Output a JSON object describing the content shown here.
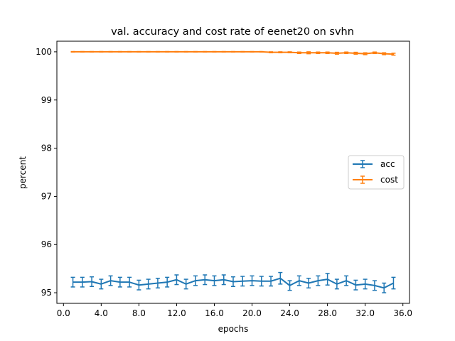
{
  "chart_data": {
    "type": "line",
    "title": "val. accuracy and cost rate of eenet20 on svhn",
    "xlabel": "epochs",
    "ylabel": "percent",
    "xlim": [
      -0.7,
      36.7
    ],
    "ylim": [
      94.78,
      100.22
    ],
    "xticks": [
      0,
      4,
      8,
      12,
      16,
      20,
      24,
      28,
      32,
      36
    ],
    "xtick_labels": [
      "0.0",
      "4.0",
      "8.0",
      "12.0",
      "16.0",
      "20.0",
      "24.0",
      "28.0",
      "32.0",
      "36.0"
    ],
    "yticks": [
      95,
      96,
      97,
      98,
      99,
      100
    ],
    "ytick_labels": [
      "95",
      "96",
      "97",
      "98",
      "99",
      "100"
    ],
    "grid": false,
    "legend_position": "center-right",
    "series": [
      {
        "name": "acc",
        "color": "#1f77b4",
        "x": [
          1,
          2,
          3,
          4,
          5,
          6,
          7,
          8,
          9,
          10,
          11,
          12,
          13,
          14,
          15,
          16,
          17,
          18,
          19,
          20,
          21,
          22,
          23,
          24,
          25,
          26,
          27,
          28,
          29,
          30,
          31,
          32,
          33,
          34,
          35
        ],
        "y": [
          95.22,
          95.22,
          95.23,
          95.18,
          95.25,
          95.22,
          95.22,
          95.16,
          95.18,
          95.2,
          95.22,
          95.27,
          95.18,
          95.25,
          95.27,
          95.25,
          95.27,
          95.23,
          95.24,
          95.25,
          95.24,
          95.24,
          95.3,
          95.15,
          95.25,
          95.2,
          95.25,
          95.28,
          95.18,
          95.25,
          95.16,
          95.18,
          95.15,
          95.1,
          95.2
        ],
        "err": [
          0.1,
          0.1,
          0.1,
          0.1,
          0.1,
          0.1,
          0.1,
          0.1,
          0.1,
          0.1,
          0.1,
          0.1,
          0.1,
          0.1,
          0.1,
          0.1,
          0.1,
          0.1,
          0.1,
          0.1,
          0.1,
          0.1,
          0.12,
          0.1,
          0.1,
          0.1,
          0.1,
          0.12,
          0.1,
          0.1,
          0.1,
          0.1,
          0.1,
          0.1,
          0.12
        ]
      },
      {
        "name": "cost",
        "color": "#ff7f0e",
        "x": [
          1,
          2,
          3,
          4,
          5,
          6,
          7,
          8,
          9,
          10,
          11,
          12,
          13,
          14,
          15,
          16,
          17,
          18,
          19,
          20,
          21,
          22,
          23,
          24,
          25,
          26,
          27,
          28,
          29,
          30,
          31,
          32,
          33,
          34,
          35
        ],
        "y": [
          100.0,
          100.0,
          100.0,
          100.0,
          100.0,
          100.0,
          100.0,
          100.0,
          100.0,
          100.0,
          100.0,
          100.0,
          100.0,
          100.0,
          100.0,
          100.0,
          100.0,
          100.0,
          100.0,
          100.0,
          100.0,
          99.99,
          99.99,
          99.99,
          99.98,
          99.98,
          99.98,
          99.98,
          99.97,
          99.98,
          99.97,
          99.96,
          99.98,
          99.96,
          99.95
        ],
        "err": [
          0.005,
          0.005,
          0.005,
          0.005,
          0.005,
          0.005,
          0.005,
          0.005,
          0.005,
          0.005,
          0.005,
          0.005,
          0.005,
          0.005,
          0.005,
          0.005,
          0.005,
          0.005,
          0.005,
          0.005,
          0.005,
          0.01,
          0.01,
          0.01,
          0.015,
          0.02,
          0.015,
          0.015,
          0.02,
          0.015,
          0.02,
          0.02,
          0.015,
          0.02,
          0.02
        ]
      }
    ]
  }
}
